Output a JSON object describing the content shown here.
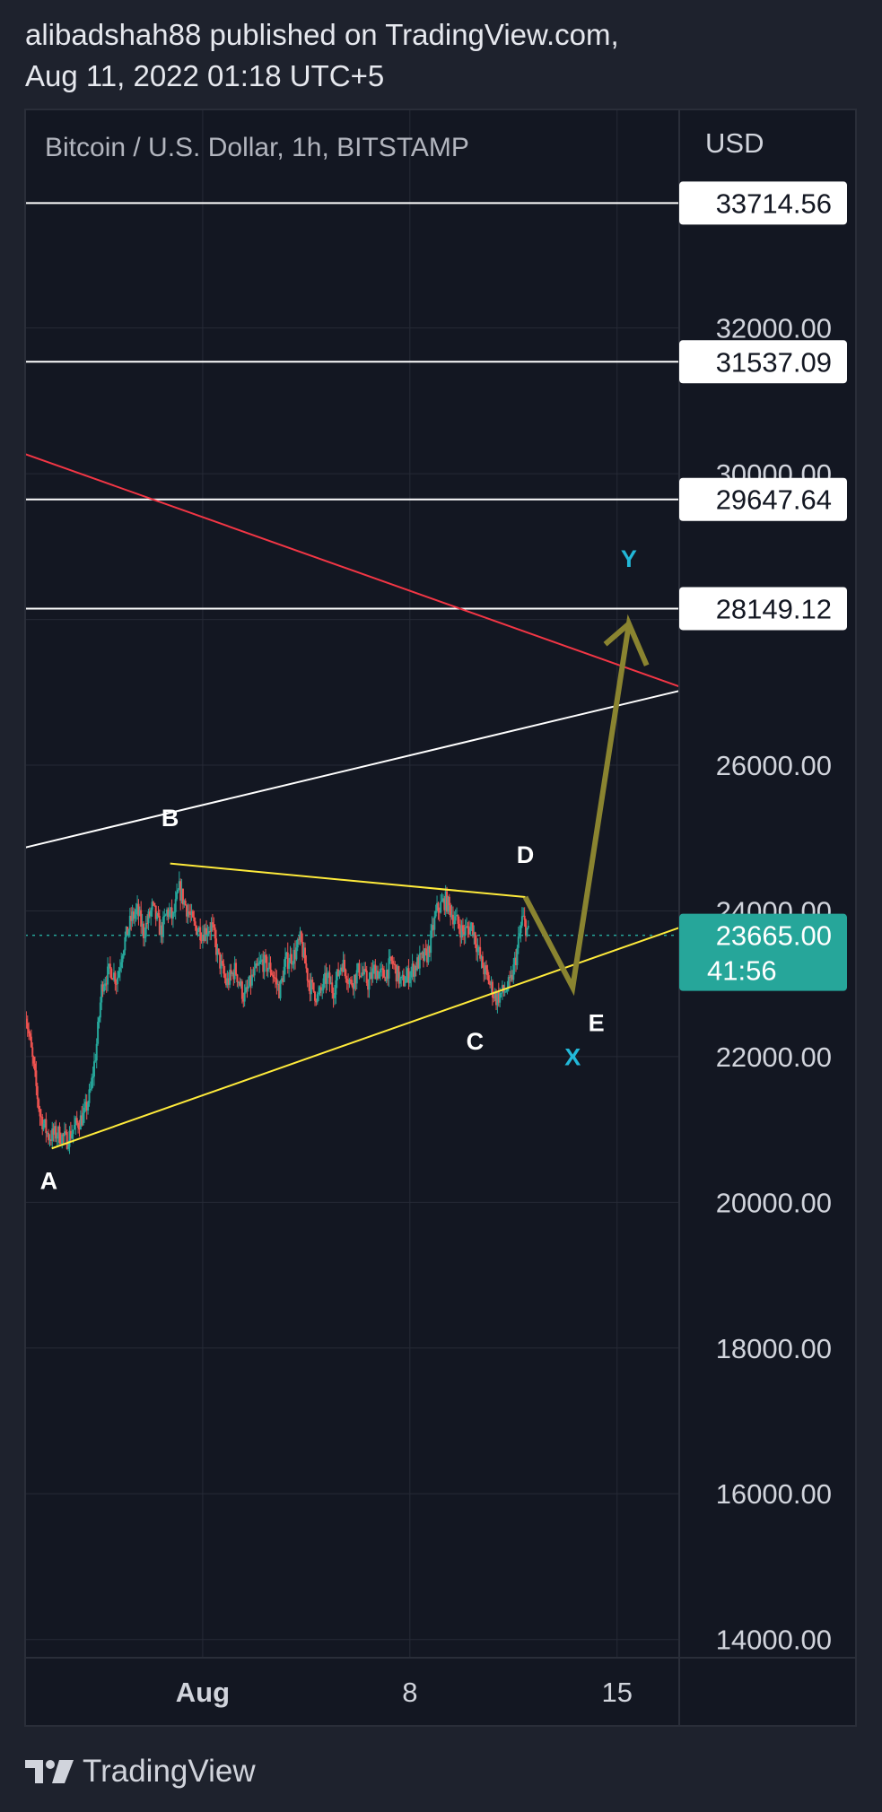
{
  "header": {
    "published_line": "alibadshah88 published on TradingView.com,",
    "date_line": "Aug 11, 2022 01:18 UTC+5"
  },
  "footer": {
    "brand": "TradingView",
    "logo_icon": "tradingview-logo-icon"
  },
  "chart_data": {
    "type": "candlestick",
    "title": "Bitcoin / U.S. Dollar, 1h, BITSTAMP",
    "currency": "USD",
    "y_ticks": [
      "14000.00",
      "16000.00",
      "18000.00",
      "20000.00",
      "22000.00",
      "24000.00",
      "26000.00",
      "28000.00",
      "30000.00",
      "32000.00"
    ],
    "x_ticks": [
      {
        "label": "Aug",
        "day": 1,
        "bold": true
      },
      {
        "label": "8",
        "day": 8,
        "bold": false
      },
      {
        "label": "15",
        "day": 15,
        "bold": false
      }
    ],
    "xlim_days": [
      -5.0,
      17.1
    ],
    "ylim": [
      13750,
      35000
    ],
    "price_lines": [
      {
        "label": "33714.56",
        "value": 33714.56
      },
      {
        "label": "31537.09",
        "value": 31537.09
      },
      {
        "label": "29647.64",
        "value": 29647.64
      },
      {
        "label": "28149.12",
        "value": 28149.12
      }
    ],
    "current_price": {
      "label": "23665.00",
      "countdown": "41:56",
      "value": 23665.0
    },
    "price_path": [
      [
        -5.0,
        22650
      ],
      [
        -4.8,
        22100
      ],
      [
        -4.5,
        21200
      ],
      [
        -4.2,
        20900
      ],
      [
        -3.9,
        20950
      ],
      [
        -3.6,
        20850
      ],
      [
        -3.3,
        21050
      ],
      [
        -3.0,
        21200
      ],
      [
        -2.8,
        21500
      ],
      [
        -2.6,
        22100
      ],
      [
        -2.4,
        23000
      ],
      [
        -2.1,
        23200
      ],
      [
        -1.9,
        23050
      ],
      [
        -1.7,
        23500
      ],
      [
        -1.4,
        23900
      ],
      [
        -1.2,
        24000
      ],
      [
        -1.0,
        23700
      ],
      [
        -0.7,
        24050
      ],
      [
        -0.4,
        23700
      ],
      [
        -0.2,
        24000
      ],
      [
        0.0,
        23900
      ],
      [
        0.2,
        24300
      ],
      [
        0.4,
        24100
      ],
      [
        0.7,
        23800
      ],
      [
        1.0,
        23700
      ],
      [
        1.3,
        23800
      ],
      [
        1.5,
        23400
      ],
      [
        1.8,
        23000
      ],
      [
        2.1,
        23200
      ],
      [
        2.4,
        22800
      ],
      [
        2.7,
        23100
      ],
      [
        3.0,
        23300
      ],
      [
        3.3,
        23200
      ],
      [
        3.6,
        22900
      ],
      [
        3.8,
        23300
      ],
      [
        4.1,
        23400
      ],
      [
        4.3,
        23600
      ],
      [
        4.6,
        23000
      ],
      [
        4.9,
        22800
      ],
      [
        5.2,
        23100
      ],
      [
        5.4,
        22900
      ],
      [
        5.7,
        23300
      ],
      [
        6.0,
        23000
      ],
      [
        6.3,
        23200
      ],
      [
        6.6,
        23000
      ],
      [
        6.8,
        23200
      ],
      [
        7.1,
        23100
      ],
      [
        7.4,
        23300
      ],
      [
        7.7,
        23000
      ],
      [
        8.0,
        23150
      ],
      [
        8.3,
        23300
      ],
      [
        8.6,
        23400
      ],
      [
        8.9,
        24000
      ],
      [
        9.2,
        24150
      ],
      [
        9.5,
        23900
      ],
      [
        9.8,
        23700
      ],
      [
        10.1,
        23800
      ],
      [
        10.4,
        23300
      ],
      [
        10.7,
        23000
      ],
      [
        10.9,
        22800
      ],
      [
        11.2,
        22900
      ],
      [
        11.4,
        23000
      ],
      [
        11.6,
        23400
      ],
      [
        11.8,
        23900
      ],
      [
        12.0,
        23700
      ]
    ],
    "lines": [
      {
        "name": "upper-white-trendline",
        "color": "#ffffff",
        "points": [
          [
            -5.0,
            24870
          ],
          [
            17.1,
            27020
          ]
        ]
      },
      {
        "name": "red-trendline",
        "color": "#f23645",
        "points": [
          [
            -5.0,
            30270
          ],
          [
            17.1,
            27080
          ]
        ]
      },
      {
        "name": "lower-yellow-trendline",
        "color": "#ffeb3b",
        "points": [
          [
            -4.1,
            20740
          ],
          [
            17.1,
            23770
          ]
        ]
      },
      {
        "name": "upper-yellow-trendline",
        "color": "#ffeb3b",
        "points": [
          [
            -0.1,
            24650
          ],
          [
            11.9,
            24190
          ]
        ]
      }
    ],
    "projection": {
      "color": "#8a8430",
      "points": [
        [
          11.9,
          24190
        ],
        [
          13.5,
          22950
        ],
        [
          15.4,
          27940
        ],
        [
          16.0,
          27370
        ]
      ],
      "arrowhead": [
        [
          14.6,
          27660
        ],
        [
          15.4,
          27940
        ]
      ]
    },
    "wave_labels": [
      {
        "text": "A",
        "day": -4.2,
        "value": 20180,
        "color": "#ffffff"
      },
      {
        "text": "B",
        "day": -0.1,
        "value": 25160,
        "color": "#ffffff"
      },
      {
        "text": "C",
        "day": 10.2,
        "value": 22100,
        "color": "#ffffff"
      },
      {
        "text": "D",
        "day": 11.9,
        "value": 24660,
        "color": "#ffffff"
      },
      {
        "text": "E",
        "day": 14.3,
        "value": 22350,
        "color": "#ffffff"
      },
      {
        "text": "X",
        "day": 13.5,
        "value": 21880,
        "color": "#22b8d8"
      },
      {
        "text": "Y",
        "day": 15.4,
        "value": 28720,
        "color": "#22b8d8"
      }
    ],
    "colors": {
      "background": "#131722",
      "grid": "#262a36",
      "axis_text": "#d1d4dc",
      "up": "#26a69a",
      "down": "#ef5350",
      "current_label": "#26a69a"
    }
  }
}
